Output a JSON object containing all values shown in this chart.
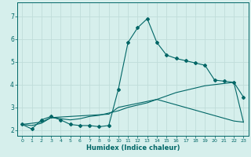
{
  "xlabel": "Humidex (Indice chaleur)",
  "bg_color": "#d6efec",
  "grid_color": "#c0ddd9",
  "line_color": "#006666",
  "xlim": [
    -0.5,
    23.5
  ],
  "ylim": [
    1.75,
    7.6
  ],
  "xticks": [
    0,
    1,
    2,
    3,
    4,
    5,
    6,
    7,
    8,
    9,
    10,
    11,
    12,
    13,
    14,
    15,
    16,
    17,
    18,
    19,
    20,
    21,
    22,
    23
  ],
  "yticks": [
    2,
    3,
    4,
    5,
    6,
    7
  ],
  "curve1_x": [
    0,
    1,
    2,
    3,
    4,
    5,
    6,
    7,
    8,
    9,
    10,
    11,
    12,
    13,
    14,
    15,
    16,
    17,
    18,
    19,
    20,
    21,
    22,
    23
  ],
  "curve1_y": [
    2.25,
    2.05,
    2.45,
    2.6,
    2.45,
    2.25,
    2.2,
    2.2,
    2.15,
    2.2,
    3.8,
    5.85,
    6.5,
    6.9,
    5.85,
    5.3,
    5.15,
    5.05,
    4.95,
    4.85,
    4.2,
    4.15,
    4.1,
    3.45
  ],
  "curve2_x": [
    0,
    1,
    2,
    3,
    4,
    5,
    6,
    7,
    8,
    9,
    10,
    11,
    12,
    13,
    14,
    15,
    16,
    17,
    18,
    19,
    20,
    21,
    22,
    23
  ],
  "curve2_y": [
    2.25,
    2.2,
    2.3,
    2.55,
    2.5,
    2.45,
    2.5,
    2.6,
    2.65,
    2.75,
    2.85,
    3.0,
    3.1,
    3.2,
    3.35,
    3.5,
    3.65,
    3.75,
    3.85,
    3.95,
    4.0,
    4.05,
    4.1,
    2.35
  ],
  "curve3_x": [
    0,
    2,
    3,
    9,
    10,
    14,
    22,
    23
  ],
  "curve3_y": [
    2.25,
    2.35,
    2.55,
    2.7,
    3.0,
    3.35,
    2.4,
    2.35
  ]
}
